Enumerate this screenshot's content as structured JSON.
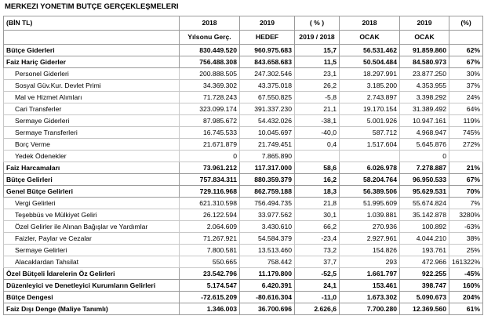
{
  "title": "MERKEZI YONETIM BUTÇE GERÇEKLEŞMELERI",
  "table": {
    "header": [
      [
        "(BİN TL)",
        "2018",
        "2019",
        "( % )",
        "2018",
        "2019",
        "(%)"
      ],
      [
        null,
        "Yılsonu Gerç.",
        "HEDEF",
        "2019 / 2018",
        "OCAK",
        "OCAK",
        null
      ]
    ],
    "rows": [
      {
        "label": "Bütçe Giderleri",
        "cells": [
          "830.449.520",
          "960.975.683",
          "15,7",
          "56.531.462",
          "91.859.860",
          "62%"
        ]
      },
      {
        "label": "Faiz Hariç Giderler",
        "cells": [
          "756.488.308",
          "843.658.683",
          "11,5",
          "50.504.484",
          "84.580.973",
          "67%"
        ]
      },
      {
        "label": "Personel Giderleri",
        "cells": [
          "200.888.505",
          "247.302.546",
          "23,1",
          "18.297.991",
          "23.877.250",
          "30%"
        ]
      },
      {
        "label": "Sosyal Güv.Kur. Devlet Primi",
        "cells": [
          "34.369.302",
          "43.375.018",
          "26,2",
          "3.185.200",
          "4.353.955",
          "37%"
        ]
      },
      {
        "label": "Mal ve Hizmet Alımları",
        "cells": [
          "71.728.243",
          "67.550.825",
          "-5,8",
          "2.743.897",
          "3.398.292",
          "24%"
        ]
      },
      {
        "label": "Cari Transferler",
        "cells": [
          "323.099.174",
          "391.337.230",
          "21,1",
          "19.170.154",
          "31.389.492",
          "64%"
        ]
      },
      {
        "label": "Sermaye Giderleri",
        "cells": [
          "87.985.672",
          "54.432.026",
          "-38,1",
          "5.001.926",
          "10.947.161",
          "119%"
        ]
      },
      {
        "label": "Sermaye Transferleri",
        "cells": [
          "16.745.533",
          "10.045.697",
          "-40,0",
          "587.712",
          "4.968.947",
          "745%"
        ]
      },
      {
        "label": "Borç Verme",
        "cells": [
          "21.671.879",
          "21.749.451",
          "0,4",
          "1.517.604",
          "5.645.876",
          "272%"
        ]
      },
      {
        "label": "Yedek Ödenekler",
        "cells": [
          "0",
          "7.865.890",
          null,
          null,
          "0",
          null
        ]
      },
      {
        "label": "Faiz Harcamaları",
        "cells": [
          "73.961.212",
          "117.317.000",
          "58,6",
          "6.026.978",
          "7.278.887",
          "21%"
        ]
      },
      {
        "label": "Bütçe Gelirleri",
        "cells": [
          "757.834.311",
          "880.359.379",
          "16,2",
          "58.204.764",
          "96.950.533",
          "67%"
        ]
      },
      {
        "label": "Genel Bütçe Gelirleri",
        "cells": [
          "729.116.968",
          "862.759.188",
          "18,3",
          "56.389.506",
          "95.629.531",
          "70%"
        ]
      },
      {
        "label": "Vergi Gelirleri",
        "cells": [
          "621.310.598",
          "756.494.735",
          "21,8",
          "51.995.609",
          "55.674.824",
          "7%"
        ]
      },
      {
        "label": "Teşebbüs ve Mülkiyet Geliri",
        "cells": [
          "26.122.594",
          "33.977.562",
          "30,1",
          "1.039.881",
          "35.142.878",
          "3280%"
        ]
      },
      {
        "label": "Özel Gelirler ile Alınan Bağışlar ve Yardımlar",
        "cells": [
          "2.064.609",
          "3.430.610",
          "66,2",
          "270.936",
          "100.892",
          "-63%"
        ]
      },
      {
        "label": "Faizler, Paylar ve Cezalar",
        "cells": [
          "71.267.921",
          "54.584.379",
          "-23,4",
          "2.927.961",
          "4.044.210",
          "38%"
        ]
      },
      {
        "label": "Sermaye Gelirleri",
        "cells": [
          "7.800.581",
          "13.513.460",
          "73,2",
          "154.826",
          "193.761",
          "25%"
        ]
      },
      {
        "label": "Alacaklardan Tahsilat",
        "cells": [
          "550.665",
          "758.442",
          "37,7",
          "293",
          "472.966",
          "161322%"
        ]
      },
      {
        "label": "Özel Bütçeli İdarelerin Öz  Gelirleri",
        "cells": [
          "23.542.796",
          "11.179.800",
          "-52,5",
          "1.661.797",
          "922.255",
          "-45%"
        ]
      },
      {
        "label": "Düzenleyici ve Denetleyici Kurumların Gelirleri",
        "cells": [
          "5.174.547",
          "6.420.391",
          "24,1",
          "153.461",
          "398.747",
          "160%"
        ]
      },
      {
        "label": "Bütçe Dengesi",
        "cells": [
          "-72.615.209",
          "-80.616.304",
          "-11,0",
          "1.673.302",
          "5.090.673",
          "204%"
        ]
      },
      {
        "label": "Faiz Dışı Denge (Maliye Tanımlı)",
        "cells": [
          "1.346.003",
          "36.700.696",
          "2.626,6",
          "7.700.280",
          "12.369.560",
          "61%"
        ]
      }
    ]
  }
}
